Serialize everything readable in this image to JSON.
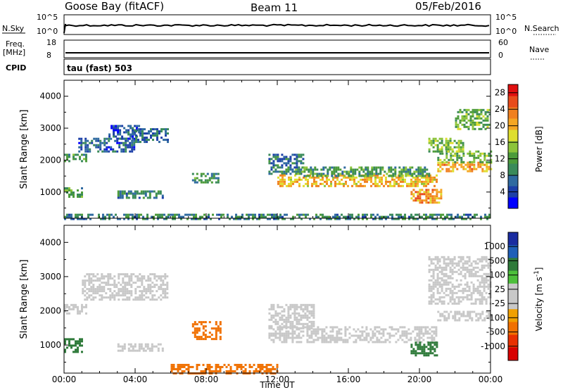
{
  "header": {
    "station": "Goose Bay (fitACF)",
    "beam": "Beam 11",
    "date": "05/Feb/2016"
  },
  "status_panels": {
    "nsky_label": "N.Sky",
    "nsearch_label": "N.Search",
    "nsky_ticks": [
      "10^5",
      "10^0"
    ],
    "nsearch_ticks": [
      "10^5",
      "10^0"
    ],
    "freq_label_1": "Freq.",
    "freq_label_2": "[MHz]",
    "freq_ticks": [
      "18",
      "8"
    ],
    "nave_label": "Nave",
    "nave_ticks": [
      "60",
      "0"
    ],
    "cpid_label": "CPID",
    "cpid_value": "tau (fast) 503"
  },
  "colors": {
    "power_scale": [
      "#0000ff",
      "#1c3fa8",
      "#2f6aa0",
      "#3a8a5a",
      "#4c9b3a",
      "#8cc43a",
      "#dede2e",
      "#f5a623",
      "#f08020",
      "#e84c1c",
      "#e01010"
    ],
    "velocity_scale": [
      "#1a2ca0",
      "#1f5fb8",
      "#2e7a3a",
      "#4cbf3a",
      "#c8c8c8",
      "#c8c8c8",
      "#f0a000",
      "#f07000",
      "#e83000",
      "#d80000"
    ]
  },
  "chart_data": [
    {
      "type": "heatmap",
      "name": "power",
      "xlabel": "",
      "ylabel": "Slant Range [km]",
      "x_ticks": [
        "00:00",
        "04:00",
        "08:00",
        "12:00",
        "16:00",
        "20:00",
        "00:00"
      ],
      "xlim_hours": [
        0,
        24
      ],
      "ylim_km": [
        180,
        4500
      ],
      "y_ticks": [
        1000,
        2000,
        3000,
        4000
      ],
      "colorbar_label": "Power [dB]",
      "colorbar_ticks": [
        "4",
        "8",
        "12",
        "16",
        "20",
        "24",
        "28"
      ],
      "colorbar_range": [
        0,
        30
      ],
      "regions": [
        {
          "t0": 0.0,
          "t1": 1.3,
          "r0": 2000,
          "r1": 2200,
          "level": 10
        },
        {
          "t0": 0.8,
          "t1": 4.0,
          "r0": 2250,
          "r1": 2700,
          "level": 6
        },
        {
          "t0": 2.5,
          "t1": 4.2,
          "r0": 2700,
          "r1": 3100,
          "level": 5
        },
        {
          "t0": 4.0,
          "t1": 5.8,
          "r0": 2600,
          "r1": 3000,
          "level": 7
        },
        {
          "t0": 0.0,
          "t1": 1.0,
          "r0": 850,
          "r1": 1150,
          "level": 12
        },
        {
          "t0": 3.0,
          "t1": 5.5,
          "r0": 850,
          "r1": 1050,
          "level": 9
        },
        {
          "t0": 7.2,
          "t1": 8.8,
          "r0": 1300,
          "r1": 1600,
          "level": 10
        },
        {
          "t0": 11.5,
          "t1": 13.5,
          "r0": 1600,
          "r1": 2200,
          "level": 8
        },
        {
          "t0": 12.0,
          "t1": 21.0,
          "r0": 1200,
          "r1": 1550,
          "level": 20
        },
        {
          "t0": 13.0,
          "t1": 20.5,
          "r0": 1500,
          "r1": 1800,
          "level": 11
        },
        {
          "t0": 19.5,
          "t1": 21.2,
          "r0": 700,
          "r1": 1100,
          "level": 22
        },
        {
          "t0": 21.0,
          "t1": 24.0,
          "r0": 1650,
          "r1": 1950,
          "level": 21
        },
        {
          "t0": 21.0,
          "t1": 24.0,
          "r0": 1950,
          "r1": 2300,
          "level": 13
        },
        {
          "t0": 20.5,
          "t1": 22.5,
          "r0": 2300,
          "r1": 2700,
          "level": 14
        },
        {
          "t0": 22.0,
          "t1": 24.0,
          "r0": 3000,
          "r1": 3600,
          "level": 13
        },
        {
          "t0": 0.0,
          "t1": 24.0,
          "r0": 180,
          "r1": 320,
          "level": 9
        }
      ]
    },
    {
      "type": "heatmap",
      "name": "velocity",
      "xlabel": "Time UT",
      "ylabel": "Slant Range [km]",
      "x_ticks": [
        "00:00",
        "04:00",
        "08:00",
        "12:00",
        "16:00",
        "20:00",
        "00:00"
      ],
      "xlim_hours": [
        0,
        24
      ],
      "ylim_km": [
        180,
        4500
      ],
      "y_ticks": [
        1000,
        2000,
        3000,
        4000
      ],
      "colorbar_label": "Velocity [m s^-1]",
      "colorbar_ticks": [
        "1000",
        "500",
        "100",
        "25",
        "-25",
        "-100",
        "-500",
        "-1000"
      ],
      "regions": [
        {
          "t0": 0.0,
          "t1": 1.3,
          "r0": 1900,
          "r1": 2200,
          "v": 0
        },
        {
          "t0": 1.0,
          "t1": 5.8,
          "r0": 2300,
          "r1": 3100,
          "v": 0
        },
        {
          "t0": 0.0,
          "t1": 1.0,
          "r0": 800,
          "r1": 1200,
          "v": 150
        },
        {
          "t0": 3.0,
          "t1": 5.5,
          "r0": 850,
          "r1": 1050,
          "v": 0
        },
        {
          "t0": 7.2,
          "t1": 8.8,
          "r0": 1200,
          "r1": 1700,
          "v": -200
        },
        {
          "t0": 11.5,
          "t1": 21.0,
          "r0": 1100,
          "r1": 1550,
          "v": 0
        },
        {
          "t0": 11.5,
          "t1": 14.0,
          "r0": 1500,
          "r1": 2200,
          "v": 0
        },
        {
          "t0": 19.5,
          "t1": 21.0,
          "r0": 700,
          "r1": 1100,
          "v": 150
        },
        {
          "t0": 21.0,
          "t1": 24.0,
          "r0": 1700,
          "r1": 2000,
          "v": 0
        },
        {
          "t0": 20.5,
          "t1": 24.0,
          "r0": 2200,
          "r1": 3600,
          "v": 0
        },
        {
          "t0": 6.0,
          "t1": 12.0,
          "r0": 180,
          "r1": 450,
          "v": -150
        }
      ]
    }
  ]
}
